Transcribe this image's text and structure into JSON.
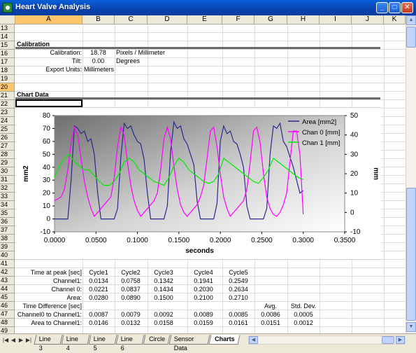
{
  "window": {
    "title": "Heart Valve Analysis"
  },
  "columns": [
    "A",
    "B",
    "C",
    "D",
    "E",
    "F",
    "G",
    "H",
    "I",
    "J",
    "K"
  ],
  "rows": [
    "13",
    "14",
    "15",
    "16",
    "17",
    "18",
    "19",
    "20",
    "21",
    "22",
    "23",
    "24",
    "25",
    "26",
    "27",
    "28",
    "29",
    "30",
    "31",
    "32",
    "33",
    "34",
    "35",
    "36",
    "37",
    "38",
    "39",
    "40",
    "41",
    "42",
    "43",
    "44",
    "45",
    "46",
    "47",
    "48",
    "49"
  ],
  "calibration": {
    "header": "Calibration",
    "calibration_label": "Calibration:",
    "calibration_value": "18.78",
    "calibration_unit": "Pixels / Millimeter",
    "tilt_label": "Tilt:",
    "tilt_value": "0.00",
    "tilt_unit": "Degrees",
    "export_label": "Export Units:",
    "export_value": "Millimeters"
  },
  "chart_header": "Chart Data",
  "chart_data": {
    "type": "line",
    "xlabel": "seconds",
    "ylabel_left": "mm2",
    "ylabel_right": "mm",
    "xlim": [
      0,
      0.35
    ],
    "ylim_left": [
      -10,
      80
    ],
    "ylim_right": [
      -10,
      50
    ],
    "x_ticks": [
      "0.0000",
      "0.0500",
      "0.1000",
      "0.1500",
      "0.2000",
      "0.2500",
      "0.3000",
      "0.3500"
    ],
    "y_ticks_left": [
      "80",
      "70",
      "60",
      "50",
      "40",
      "30",
      "20",
      "10",
      "0",
      "-10"
    ],
    "y_ticks_right": [
      "50",
      "40",
      "30",
      "20",
      "10",
      "0",
      "-10"
    ],
    "legend_position": "top-right",
    "series": [
      {
        "name": "Area [mm2]",
        "axis": "left",
        "color": "#2a2a8c",
        "x": [
          0.0,
          0.01,
          0.016,
          0.02,
          0.024,
          0.028,
          0.032,
          0.036,
          0.04,
          0.044,
          0.048,
          0.052,
          0.056,
          0.06,
          0.066,
          0.072,
          0.076,
          0.08,
          0.084,
          0.088,
          0.092,
          0.096,
          0.1,
          0.104,
          0.108,
          0.112,
          0.116,
          0.12,
          0.126,
          0.132,
          0.136,
          0.14,
          0.144,
          0.148,
          0.152,
          0.156,
          0.16,
          0.164,
          0.168,
          0.172,
          0.176,
          0.18,
          0.186,
          0.192,
          0.196,
          0.2,
          0.204,
          0.208,
          0.212,
          0.216,
          0.22,
          0.224,
          0.228,
          0.232,
          0.236,
          0.24,
          0.246,
          0.252,
          0.256,
          0.26,
          0.264,
          0.268,
          0.272,
          0.276,
          0.28,
          0.284,
          0.288,
          0.292,
          0.296,
          0.3
        ],
        "y": [
          0,
          0,
          0,
          30,
          72,
          70,
          66,
          68,
          60,
          62,
          50,
          20,
          0,
          0,
          0,
          0,
          8,
          48,
          74,
          70,
          72,
          65,
          60,
          58,
          46,
          20,
          0,
          0,
          0,
          0,
          10,
          52,
          75,
          70,
          72,
          62,
          58,
          50,
          42,
          14,
          0,
          0,
          0,
          0,
          12,
          60,
          72,
          66,
          68,
          60,
          58,
          50,
          40,
          10,
          0,
          0,
          0,
          0,
          8,
          50,
          72,
          70,
          74,
          60,
          56,
          48,
          40,
          30,
          20,
          22
        ]
      },
      {
        "name": "Chan 0 [mm]",
        "axis": "right",
        "color": "#ff00ff",
        "x": [
          0.0,
          0.004,
          0.008,
          0.012,
          0.016,
          0.02,
          0.024,
          0.028,
          0.032,
          0.036,
          0.04,
          0.044,
          0.048,
          0.052,
          0.056,
          0.06,
          0.064,
          0.068,
          0.072,
          0.076,
          0.08,
          0.084,
          0.088,
          0.092,
          0.096,
          0.1,
          0.104,
          0.108,
          0.112,
          0.116,
          0.12,
          0.124,
          0.128,
          0.132,
          0.136,
          0.14,
          0.144,
          0.148,
          0.152,
          0.156,
          0.16,
          0.164,
          0.168,
          0.172,
          0.176,
          0.18,
          0.184,
          0.188,
          0.192,
          0.196,
          0.2,
          0.204,
          0.208,
          0.212,
          0.216,
          0.22,
          0.224,
          0.228,
          0.232,
          0.236,
          0.24,
          0.244,
          0.248,
          0.252,
          0.256,
          0.26,
          0.264,
          0.268,
          0.272,
          0.276,
          0.28,
          0.284,
          0.288,
          0.292,
          0.296,
          0.3
        ],
        "y": [
          6,
          7,
          8,
          12,
          22,
          36,
          44,
          40,
          28,
          16,
          8,
          2,
          -2,
          0,
          2,
          4,
          6,
          8,
          18,
          34,
          44,
          40,
          26,
          14,
          6,
          1,
          -2,
          0,
          2,
          4,
          6,
          10,
          22,
          38,
          44,
          38,
          24,
          12,
          4,
          0,
          -2,
          0,
          2,
          4,
          8,
          14,
          28,
          42,
          44,
          34,
          20,
          8,
          2,
          -2,
          0,
          2,
          4,
          6,
          12,
          26,
          42,
          44,
          36,
          20,
          8,
          2,
          -1,
          -2,
          0,
          4,
          10,
          26,
          42,
          42,
          30,
          -1
        ]
      },
      {
        "name": "Chan 1 [mm]",
        "axis": "right",
        "color": "#00ee00",
        "x": [
          0.0,
          0.006,
          0.012,
          0.018,
          0.024,
          0.03,
          0.036,
          0.042,
          0.048,
          0.054,
          0.06,
          0.066,
          0.072,
          0.078,
          0.084,
          0.09,
          0.096,
          0.102,
          0.108,
          0.114,
          0.12,
          0.126,
          0.132,
          0.138,
          0.144,
          0.15,
          0.156,
          0.162,
          0.168,
          0.174,
          0.18,
          0.186,
          0.192,
          0.198,
          0.204,
          0.21,
          0.216,
          0.222,
          0.228,
          0.234,
          0.24,
          0.246,
          0.252,
          0.258,
          0.264,
          0.27,
          0.276,
          0.282,
          0.288,
          0.294,
          0.3
        ],
        "y": [
          18,
          24,
          28,
          30,
          26,
          24,
          22,
          22,
          19,
          16,
          14,
          14,
          16,
          20,
          26,
          28,
          26,
          22,
          20,
          18,
          16,
          15,
          14,
          18,
          24,
          28,
          26,
          22,
          20,
          18,
          16,
          15,
          16,
          20,
          28,
          26,
          24,
          22,
          20,
          18,
          16,
          15,
          18,
          22,
          28,
          26,
          24,
          22,
          20,
          18,
          17
        ]
      }
    ]
  },
  "stats": {
    "time_peak_label": "Time at peak [sec]",
    "cycles": [
      "Cycle1",
      "Cycle2",
      "Cycle3",
      "Cycle4",
      "Cycle5"
    ],
    "channel1_label": "Channel1:",
    "channel1": [
      "0.0134",
      "0.0758",
      "0.1342",
      "0.1941",
      "0.2549"
    ],
    "channel0_label": "Channel 0:",
    "channel0": [
      "0.0221",
      "0.0837",
      "0.1434",
      "0.2030",
      "0.2634"
    ],
    "area_label": "Area:",
    "area": [
      "0.0280",
      "0.0890",
      "0.1500",
      "0.2100",
      "0.2710"
    ],
    "time_diff_label": "Time Difference [sec]",
    "avg_label": "Avg.",
    "std_label": "Std. Dev.",
    "ch0_to_ch1_label": "Channel0 to Channel1:",
    "ch0_to_ch1": [
      "0.0087",
      "0.0079",
      "0.0092",
      "0.0089",
      "0.0085"
    ],
    "ch0_to_ch1_avg": "0.0086",
    "ch0_to_ch1_std": "0.0005",
    "area_to_ch1_label": "Area to Channel1:",
    "area_to_ch1": [
      "0.0146",
      "0.0132",
      "0.0158",
      "0.0159",
      "0.0161"
    ],
    "area_to_ch1_avg": "0.0151",
    "area_to_ch1_std": "0.0012"
  },
  "tabs": [
    "Line 3",
    "Line 4",
    "Line 5",
    "Line 6",
    "Circle",
    "Sensor Data",
    "Charts"
  ],
  "active_tab": "Charts"
}
